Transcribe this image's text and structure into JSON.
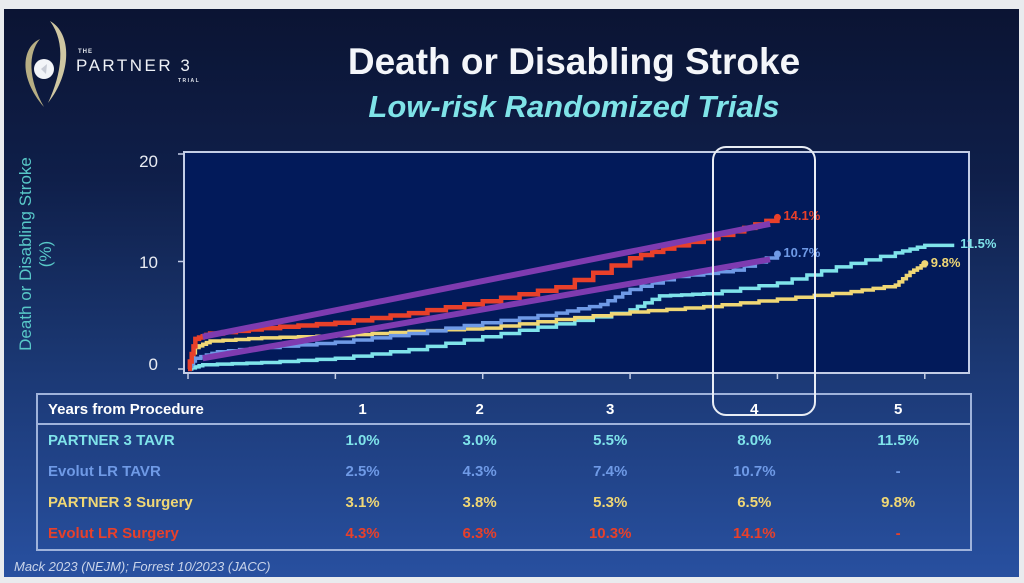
{
  "logo": {
    "the": "THE",
    "name": "PARTNER 3",
    "trial": "TRIAL"
  },
  "colors": {
    "partner3_tavr": "#7fe3ea",
    "evolut_tavr": "#6f9ae6",
    "partner3_surgery": "#f0d775",
    "evolut_surgery": "#e8402a",
    "annotation_line": "#7e3bb0",
    "highlight": "#e8edf5"
  },
  "chart_data": {
    "type": "line",
    "title": "Death or Disabling Stroke",
    "subtitle": "Low-risk Randomized Trials",
    "xlabel": "Years from Procedure",
    "ylabel": "Death or Disabling Stroke (%)",
    "xlim": [
      0,
      5.3
    ],
    "ylim": [
      0,
      20
    ],
    "yticks": [
      "0",
      "10",
      "20"
    ],
    "xticks": [
      0,
      1,
      2,
      3,
      4,
      5
    ],
    "grid": false,
    "highlighted_year": "4",
    "series": [
      {
        "name": "PARTNER 3 TAVR",
        "key": "partner3_tavr",
        "end_label": "11.5%",
        "points": [
          [
            0,
            0
          ],
          [
            0.1,
            0.4
          ],
          [
            0.5,
            0.6
          ],
          [
            1,
            1.0
          ],
          [
            1.5,
            1.8
          ],
          [
            2,
            3.0
          ],
          [
            2.5,
            4.2
          ],
          [
            3,
            5.5
          ],
          [
            3.2,
            6.8
          ],
          [
            3.5,
            7.0
          ],
          [
            4,
            8.0
          ],
          [
            4.4,
            9.5
          ],
          [
            4.8,
            10.8
          ],
          [
            5,
            11.5
          ],
          [
            5.2,
            11.5
          ]
        ]
      },
      {
        "name": "Evolut LR TAVR",
        "key": "evolut_tavr",
        "end_label": "10.7%",
        "points": [
          [
            0,
            0
          ],
          [
            0.05,
            1.0
          ],
          [
            0.2,
            1.6
          ],
          [
            0.5,
            2.0
          ],
          [
            1,
            2.5
          ],
          [
            1.5,
            3.3
          ],
          [
            2,
            4.3
          ],
          [
            2.5,
            5.2
          ],
          [
            2.8,
            6.0
          ],
          [
            3,
            7.4
          ],
          [
            3.3,
            8.6
          ],
          [
            3.7,
            9.2
          ],
          [
            4,
            10.7
          ]
        ]
      },
      {
        "name": "PARTNER 3 Surgery",
        "key": "partner3_surgery",
        "end_label": "9.8%",
        "points": [
          [
            0,
            0
          ],
          [
            0.05,
            2.0
          ],
          [
            0.15,
            2.6
          ],
          [
            0.5,
            2.9
          ],
          [
            1,
            3.1
          ],
          [
            1.5,
            3.5
          ],
          [
            2,
            3.8
          ],
          [
            2.5,
            4.6
          ],
          [
            3,
            5.3
          ],
          [
            3.5,
            5.8
          ],
          [
            4,
            6.5
          ],
          [
            4.5,
            7.2
          ],
          [
            4.8,
            7.8
          ],
          [
            4.9,
            9.0
          ],
          [
            5,
            9.8
          ]
        ]
      },
      {
        "name": "Evolut LR Surgery",
        "key": "evolut_surgery",
        "end_label": "14.1%",
        "points": [
          [
            0,
            0
          ],
          [
            0.05,
            2.8
          ],
          [
            0.15,
            3.3
          ],
          [
            0.5,
            3.8
          ],
          [
            1,
            4.3
          ],
          [
            1.5,
            5.2
          ],
          [
            2,
            6.3
          ],
          [
            2.5,
            7.6
          ],
          [
            3,
            10.3
          ],
          [
            3.3,
            11.5
          ],
          [
            3.7,
            12.8
          ],
          [
            4,
            14.1
          ]
        ]
      }
    ],
    "annotation_lines": [
      {
        "from": [
          0.1,
          3.0
        ],
        "to": [
          3.95,
          13.5
        ]
      },
      {
        "from": [
          0.1,
          1.0
        ],
        "to": [
          3.95,
          10.2
        ]
      }
    ]
  },
  "table": {
    "header": [
      "Years from Procedure",
      "1",
      "2",
      "3",
      "4",
      "5"
    ],
    "rows": [
      {
        "key": "partner3_tavr",
        "label": "PARTNER 3 TAVR",
        "values": [
          "1.0%",
          "3.0%",
          "5.5%",
          "8.0%",
          "11.5%"
        ]
      },
      {
        "key": "evolut_tavr",
        "label": "Evolut LR TAVR",
        "values": [
          "2.5%",
          "4.3%",
          "7.4%",
          "10.7%",
          "-"
        ]
      },
      {
        "key": "partner3_surgery",
        "label": "PARTNER 3 Surgery",
        "values": [
          "3.1%",
          "3.8%",
          "5.3%",
          "6.5%",
          "9.8%"
        ]
      },
      {
        "key": "evolut_surgery",
        "label": "Evolut LR Surgery",
        "values": [
          "4.3%",
          "6.3%",
          "10.3%",
          "14.1%",
          "-"
        ]
      }
    ]
  },
  "footnote": "Mack 2023 (NEJM); Forrest 10/2023 (JACC)"
}
